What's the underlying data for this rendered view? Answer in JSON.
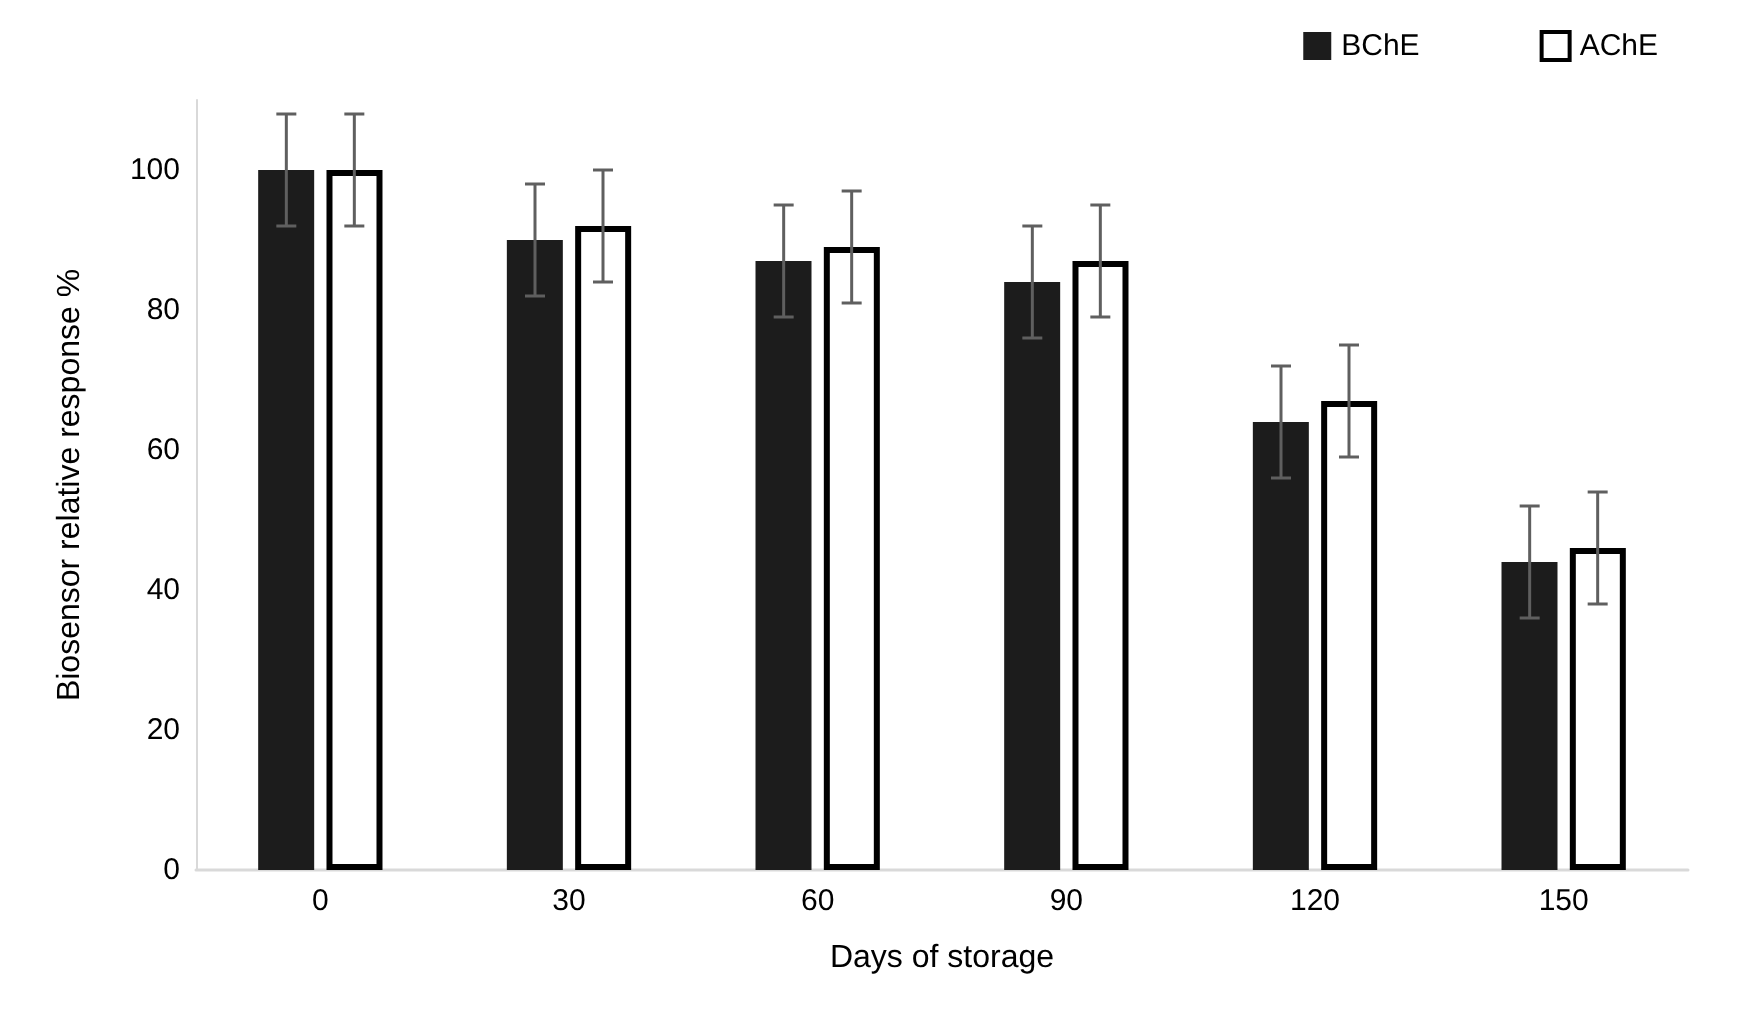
{
  "chart_data": {
    "type": "bar",
    "xlabel": "Days of storage",
    "ylabel": "Biosensor relative response %",
    "categories": [
      "0",
      "30",
      "60",
      "90",
      "120",
      "150"
    ],
    "series": [
      {
        "name": "BChE",
        "color": "#1c1c1c",
        "values": [
          100,
          90,
          87,
          84,
          64,
          44
        ],
        "errors": [
          8,
          8,
          8,
          8,
          8,
          8
        ]
      },
      {
        "name": "AChE",
        "color": "#ffffff",
        "values": [
          100,
          92,
          89,
          87,
          67,
          46
        ],
        "errors": [
          8,
          8,
          8,
          8,
          8,
          8
        ]
      }
    ],
    "ylim": [
      0,
      110
    ],
    "yticks": [
      0,
      20,
      40,
      60,
      80,
      100
    ],
    "grid": false,
    "legend": "top right"
  }
}
